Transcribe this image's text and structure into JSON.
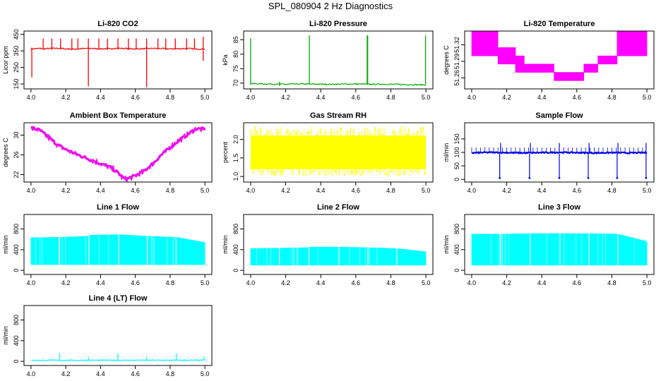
{
  "page": {
    "title": "SPL_080904  2 Hz Diagnostics"
  },
  "chart_data": [
    {
      "type": "line",
      "title": "Li-820 CO2",
      "xlabel": "",
      "ylabel": "Licor ppm",
      "xlim": [
        4.0,
        5.0
      ],
      "ylim": [
        120,
        470
      ],
      "x_ticks": [
        "4.0",
        "4.2",
        "4.4",
        "4.6",
        "4.8",
        "5.0"
      ],
      "y_ticks": [
        "150",
        "250",
        "350",
        "450"
      ],
      "color": "#ff0000",
      "series": [
        {
          "x": [
            4.0,
            4.02,
            4.05,
            4.08,
            4.1,
            4.15,
            4.2,
            4.25,
            4.3,
            4.35,
            4.4,
            4.45,
            4.5,
            4.55,
            4.6,
            4.65,
            4.7,
            4.75,
            4.8,
            4.85,
            4.9,
            4.95,
            5.0
          ],
          "values": [
            361,
            363,
            365,
            362,
            364,
            366,
            363,
            361,
            364,
            365,
            362,
            363,
            366,
            364,
            362,
            363,
            365,
            364,
            362,
            363,
            365,
            361,
            362
          ],
          "spikes": [
            {
              "x": 4.005,
              "low": 190,
              "high": 370
            },
            {
              "x": 4.07,
              "low": 358,
              "high": 425
            },
            {
              "x": 4.12,
              "low": 355,
              "high": 425
            },
            {
              "x": 4.17,
              "low": 358,
              "high": 425
            },
            {
              "x": 4.235,
              "low": 355,
              "high": 425
            },
            {
              "x": 4.27,
              "low": 358,
              "high": 425
            },
            {
              "x": 4.33,
              "low": 135,
              "high": 425
            },
            {
              "x": 4.39,
              "low": 358,
              "high": 425
            },
            {
              "x": 4.44,
              "low": 355,
              "high": 425
            },
            {
              "x": 4.5,
              "low": 358,
              "high": 425
            },
            {
              "x": 4.56,
              "low": 355,
              "high": 425
            },
            {
              "x": 4.605,
              "low": 358,
              "high": 425
            },
            {
              "x": 4.665,
              "low": 130,
              "high": 425
            },
            {
              "x": 4.73,
              "low": 358,
              "high": 425
            },
            {
              "x": 4.775,
              "low": 355,
              "high": 425
            },
            {
              "x": 4.83,
              "low": 358,
              "high": 425
            },
            {
              "x": 4.895,
              "low": 355,
              "high": 425
            },
            {
              "x": 4.94,
              "low": 358,
              "high": 425
            },
            {
              "x": 4.99,
              "low": 290,
              "high": 435
            }
          ]
        }
      ]
    },
    {
      "type": "line",
      "title": "Li-820 Pressure",
      "xlabel": "",
      "ylabel": "kPa",
      "xlim": [
        4.0,
        5.0
      ],
      "ylim": [
        68,
        88
      ],
      "x_ticks": [
        "4.0",
        "4.2",
        "4.4",
        "4.6",
        "4.8",
        "5.0"
      ],
      "y_ticks": [
        "70",
        "75",
        "80",
        "85"
      ],
      "color": "#00aa00",
      "series": [
        {
          "x": [
            4.0,
            4.1,
            4.2,
            4.3,
            4.4,
            4.5,
            4.6,
            4.7,
            4.8,
            4.9,
            5.0
          ],
          "values": [
            69.8,
            69.7,
            69.6,
            69.7,
            69.6,
            69.6,
            69.7,
            69.6,
            69.6,
            69.5,
            69.4
          ],
          "spikes": [
            {
              "x": 4.0,
              "low": 69.5,
              "high": 85.5
            },
            {
              "x": 4.165,
              "low": 69.0,
              "high": 70.5
            },
            {
              "x": 4.335,
              "low": 69.5,
              "high": 86.5
            },
            {
              "x": 4.665,
              "low": 69.5,
              "high": 86.5
            },
            {
              "x": 4.668,
              "low": 69.5,
              "high": 86.5
            },
            {
              "x": 4.998,
              "low": 69.5,
              "high": 86.5
            }
          ]
        }
      ]
    },
    {
      "type": "line",
      "title": "Li-820 Temperature",
      "xlabel": "",
      "ylabel": "degrees C",
      "xlim": [
        4.0,
        5.0
      ],
      "ylim": [
        51.24,
        51.345
      ],
      "x_ticks": [
        "4.0",
        "4.2",
        "4.4",
        "4.6",
        "4.8",
        "5.0"
      ],
      "y_ticks": [
        "51.26",
        "51.29",
        "51.32"
      ],
      "color": "#ff00ff",
      "series": [
        {
          "x": [
            4.0,
            4.15,
            4.15,
            4.25,
            4.25,
            4.3,
            4.3,
            4.47,
            4.47,
            4.64,
            4.64,
            4.72,
            4.72,
            4.83,
            4.83,
            5.0
          ],
          "low": [
            51.3,
            51.3,
            51.285,
            51.285,
            51.27,
            51.27,
            51.27,
            51.27,
            51.255,
            51.255,
            51.27,
            51.27,
            51.285,
            51.285,
            51.3,
            51.3
          ],
          "high": [
            51.345,
            51.345,
            51.315,
            51.315,
            51.3,
            51.3,
            51.285,
            51.285,
            51.27,
            51.27,
            51.285,
            51.285,
            51.3,
            51.3,
            51.345,
            51.345
          ]
        }
      ]
    },
    {
      "type": "line",
      "title": "Ambient Box Temperature",
      "xlabel": "",
      "ylabel": "degrees C",
      "xlim": [
        4.0,
        5.0
      ],
      "ylim": [
        20.5,
        32.5
      ],
      "x_ticks": [
        "4.0",
        "4.2",
        "4.4",
        "4.6",
        "4.8",
        "5.0"
      ],
      "y_ticks": [
        "22",
        "26",
        "30"
      ],
      "color": "#ee11ee",
      "series": [
        {
          "x": [
            4.0,
            4.05,
            4.1,
            4.15,
            4.2,
            4.25,
            4.3,
            4.35,
            4.4,
            4.45,
            4.5,
            4.53,
            4.55,
            4.6,
            4.65,
            4.7,
            4.75,
            4.8,
            4.85,
            4.9,
            4.95,
            5.0
          ],
          "values": [
            31.5,
            31.0,
            29.6,
            28.1,
            27.1,
            26.3,
            25.6,
            24.9,
            24.2,
            23.6,
            22.4,
            21.3,
            21.1,
            21.8,
            22.7,
            24.2,
            26.0,
            27.5,
            28.9,
            30.1,
            31.3,
            31.2
          ]
        }
      ]
    },
    {
      "type": "area",
      "title": "Gas Stream RH",
      "xlabel": "",
      "ylabel": "percent",
      "xlim": [
        4.0,
        5.0
      ],
      "ylim": [
        0.85,
        2.45
      ],
      "x_ticks": [
        "4.0",
        "4.2",
        "4.4",
        "4.6",
        "4.8",
        "5.0"
      ],
      "y_ticks": [
        "1.0",
        "1.5",
        "2.0"
      ],
      "color": "#ffff00",
      "series": [
        {
          "x": [
            4.0,
            5.0
          ],
          "low": [
            1.2,
            1.2
          ],
          "high": [
            2.1,
            2.1
          ],
          "min": 1.0,
          "max": 2.35
        }
      ]
    },
    {
      "type": "line",
      "title": "Sample Flow",
      "xlabel": "",
      "ylabel": "ml/min",
      "xlim": [
        4.0,
        5.0
      ],
      "ylim": [
        -10,
        210
      ],
      "x_ticks": [
        "4.0",
        "4.2",
        "4.4",
        "4.6",
        "4.8",
        "5.0"
      ],
      "y_ticks": [
        "0",
        "50",
        "100",
        "150"
      ],
      "color": "#0000ee",
      "series": [
        {
          "x": [
            4.0,
            4.1,
            4.2,
            4.3,
            4.4,
            4.5,
            4.6,
            4.7,
            4.8,
            4.9,
            5.0
          ],
          "values": [
            98,
            100,
            99,
            98,
            99,
            100,
            99,
            98,
            99,
            98,
            99
          ],
          "dips": [
            4.16,
            4.33,
            4.5,
            4.665,
            4.83,
            4.995
          ],
          "peaks": [
            4.165,
            4.335,
            4.5,
            4.67,
            4.835,
            4.995
          ]
        }
      ]
    },
    {
      "type": "area",
      "title": "Line 1 Flow",
      "xlabel": "",
      "ylabel": "ml/min",
      "xlim": [
        4.0,
        5.0
      ],
      "ylim": [
        -80,
        1080
      ],
      "x_ticks": [
        "4.0",
        "4.2",
        "4.4",
        "4.6",
        "4.8",
        "5.0"
      ],
      "y_ticks": [
        "0",
        "400",
        "800"
      ],
      "color": "#00ffff",
      "series": [
        {
          "x": [
            4.0,
            4.16,
            4.165,
            4.33,
            4.335,
            4.5,
            4.505,
            4.665,
            4.67,
            4.83,
            4.835,
            5.0
          ],
          "low": [
            110,
            110,
            110,
            110,
            110,
            110,
            110,
            110,
            110,
            110,
            110,
            110
          ],
          "high": [
            630,
            640,
            640,
            660,
            680,
            690,
            690,
            660,
            660,
            640,
            640,
            540
          ]
        }
      ]
    },
    {
      "type": "area",
      "title": "Line 2 Flow",
      "xlabel": "",
      "ylabel": "ml/min",
      "xlim": [
        4.0,
        5.0
      ],
      "ylim": [
        -80,
        1080
      ],
      "x_ticks": [
        "4.0",
        "4.2",
        "4.4",
        "4.6",
        "4.8",
        "5.0"
      ],
      "y_ticks": [
        "0",
        "400",
        "800"
      ],
      "color": "#00ffff",
      "series": [
        {
          "x": [
            4.0,
            4.16,
            4.165,
            4.33,
            4.335,
            4.5,
            4.505,
            4.665,
            4.67,
            4.83,
            4.835,
            5.0
          ],
          "low": [
            100,
            100,
            100,
            100,
            100,
            100,
            100,
            100,
            100,
            100,
            100,
            100
          ],
          "high": [
            420,
            430,
            430,
            440,
            450,
            450,
            450,
            440,
            440,
            420,
            420,
            360
          ]
        }
      ]
    },
    {
      "type": "area",
      "title": "Line 3 Flow",
      "xlabel": "",
      "ylabel": "ml/min",
      "xlim": [
        4.0,
        5.0
      ],
      "ylim": [
        -80,
        1080
      ],
      "x_ticks": [
        "4.0",
        "4.2",
        "4.4",
        "4.6",
        "4.8",
        "5.0"
      ],
      "y_ticks": [
        "0",
        "400",
        "800"
      ],
      "color": "#00ffff",
      "series": [
        {
          "x": [
            4.0,
            4.16,
            4.165,
            4.33,
            4.335,
            4.5,
            4.505,
            4.665,
            4.67,
            4.83,
            4.835,
            5.0
          ],
          "low": [
            100,
            100,
            100,
            100,
            100,
            100,
            100,
            100,
            100,
            100,
            100,
            100
          ],
          "high": [
            700,
            700,
            700,
            710,
            710,
            710,
            710,
            710,
            710,
            700,
            700,
            560
          ]
        }
      ]
    },
    {
      "type": "line",
      "title": "Line 4 (LT) Flow",
      "xlabel": "",
      "ylabel": "ml/min",
      "xlim": [
        4.0,
        5.0
      ],
      "ylim": [
        -80,
        1080
      ],
      "x_ticks": [
        "4.0",
        "4.2",
        "4.4",
        "4.6",
        "4.8",
        "5.0"
      ],
      "y_ticks": [
        "0",
        "400",
        "800"
      ],
      "color": "#00ffff",
      "series": [
        {
          "x": [
            4.0,
            5.0
          ],
          "values": [
            20,
            20
          ],
          "spikes": [
            {
              "x": 4.165,
              "low": 20,
              "high": 160
            },
            {
              "x": 4.33,
              "low": 20,
              "high": 90
            },
            {
              "x": 4.5,
              "low": 20,
              "high": 160
            },
            {
              "x": 4.665,
              "low": 20,
              "high": 90
            },
            {
              "x": 4.835,
              "low": 20,
              "high": 150
            },
            {
              "x": 4.995,
              "low": 20,
              "high": 90
            }
          ]
        }
      ]
    }
  ]
}
